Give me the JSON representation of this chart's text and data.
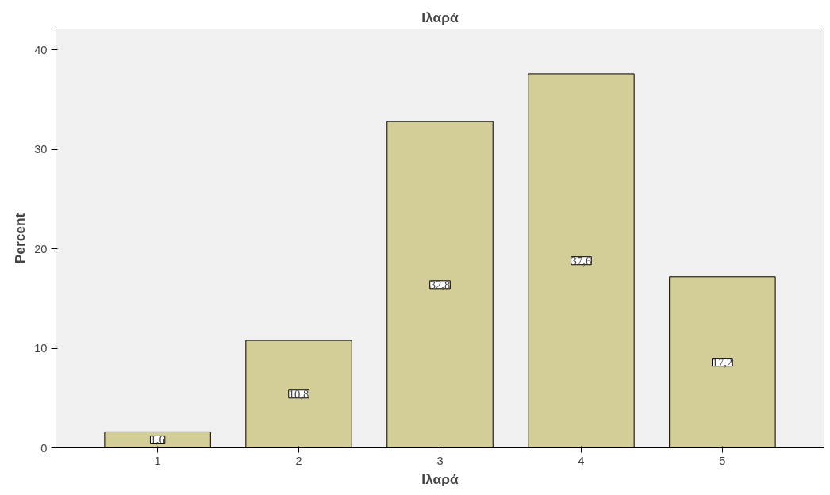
{
  "chart_data": {
    "type": "bar",
    "title": "Ιλαρά",
    "xlabel": "Ιλαρά",
    "ylabel": "Percent",
    "categories": [
      "1",
      "2",
      "3",
      "4",
      "5"
    ],
    "values": [
      1.6,
      10.8,
      32.8,
      37.6,
      17.2
    ],
    "value_labels": [
      "1,6",
      "10,8",
      "32,8",
      "37,6",
      "17,2"
    ],
    "color": "#d3cd97",
    "ylim": [
      0,
      42.1
    ],
    "yticks": [
      0,
      10,
      20,
      30,
      40
    ],
    "grid": false
  }
}
